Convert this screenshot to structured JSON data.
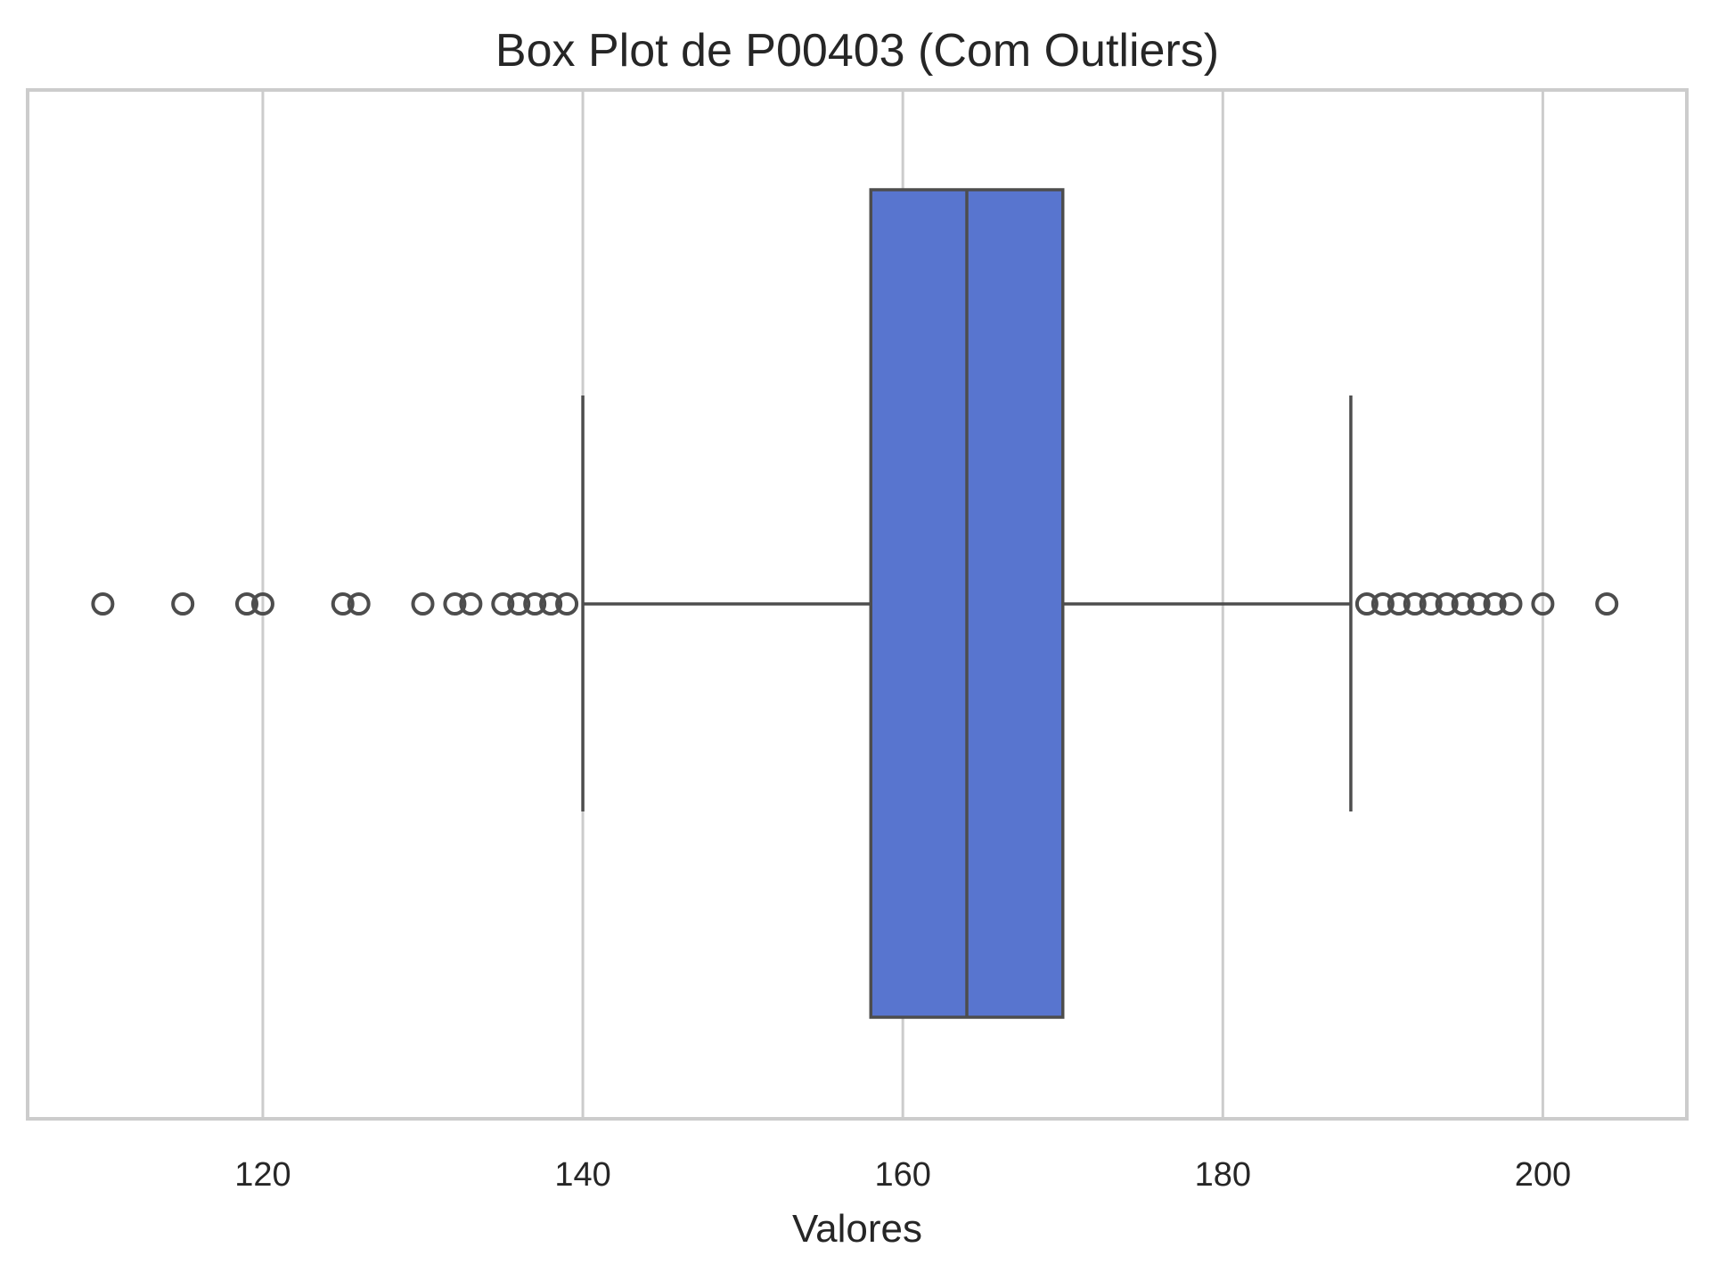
{
  "chart_data": {
    "type": "box",
    "orientation": "horizontal",
    "title": "Box Plot de P00403 (Com Outliers)",
    "xlabel": "Valores",
    "ylabel": "",
    "xlim": [
      105.3,
      209.0
    ],
    "xticks": [
      120,
      140,
      160,
      180,
      200
    ],
    "xtick_labels": [
      "120",
      "140",
      "160",
      "180",
      "200"
    ],
    "grid": true,
    "box": {
      "whisker_low": 140,
      "q1": 158,
      "median": 164,
      "q3": 170,
      "whisker_high": 188
    },
    "outliers": [
      110,
      115,
      119,
      120,
      125,
      126,
      130,
      132,
      133,
      135,
      136,
      137,
      138,
      139,
      189,
      190,
      191,
      192,
      193,
      194,
      195,
      196,
      197,
      198,
      200,
      204
    ],
    "colors": {
      "box_fill": "#5875cf",
      "line": "#4d4d4d",
      "grid": "#cccccc",
      "frame": "#cccccc",
      "outlier_stroke": "#4d4d4d"
    }
  }
}
